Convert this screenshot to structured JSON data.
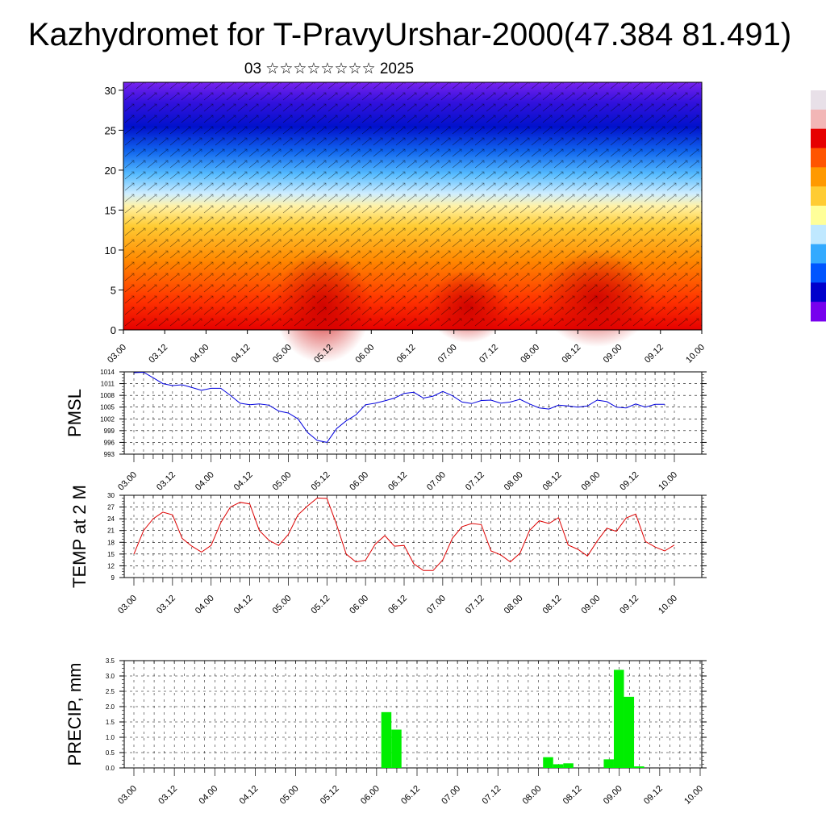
{
  "title": "Kazhydromet for T-PravyUrshar-2000(47.384 81.491)",
  "subtitle": "03 ☆☆☆☆☆☆☆☆ 2025",
  "colors": {
    "pmsl_line": "#0000dd",
    "temp_line": "#dd0000",
    "precip_bar": "#00ee00",
    "grid": "#000000"
  },
  "chart_data": [
    {
      "type": "heatmap",
      "name": "cross-section",
      "x_ticks": [
        "03.00",
        "03.12",
        "04.00",
        "04.12",
        "05.00",
        "05.12",
        "06.00",
        "06.12",
        "07.00",
        "07.12",
        "08.00",
        "08.12",
        "09.00",
        "09.12",
        "10.00"
      ],
      "y_ticks": [
        0,
        5,
        10,
        15,
        20,
        25,
        30
      ],
      "ylim": [
        0,
        31
      ],
      "colorbar_colors": [
        "#e8e0e8",
        "#f2b6b6",
        "#e60000",
        "#ff5500",
        "#ff9900",
        "#ffcc33",
        "#ffff99",
        "#bfe8ff",
        "#33aaff",
        "#0055ff",
        "#0000cc",
        "#7700ee"
      ]
    },
    {
      "type": "line",
      "name": "pmsl",
      "ylabel": "PMSL",
      "x_ticks": [
        "03.00",
        "03.12",
        "04.00",
        "04.12",
        "05.00",
        "05.12",
        "06.00",
        "06.12",
        "07.00",
        "07.12",
        "08.00",
        "08.12",
        "09.00",
        "09.12",
        "10.00"
      ],
      "y_ticks": [
        993,
        996,
        999,
        1002,
        1005,
        1008,
        1011,
        1014
      ],
      "ylim": [
        993,
        1014
      ],
      "values": [
        1013.8,
        1013.9,
        1012.5,
        1011,
        1010.5,
        1010.7,
        1010,
        1009.3,
        1009.8,
        1009.8,
        1008,
        1006,
        1005.6,
        1005.8,
        1005.5,
        1004,
        1003.5,
        1002,
        998.5,
        996.5,
        996,
        999.5,
        1001.5,
        1003,
        1005.6,
        1006,
        1006.6,
        1007.3,
        1008.5,
        1008.8,
        1007.3,
        1007.8,
        1009,
        1007.9,
        1006.3,
        1005.9,
        1006.7,
        1006.8,
        1006,
        1006.3,
        1007,
        1005.8,
        1004.8,
        1004.5,
        1005.5,
        1005.3,
        1005,
        1005.3,
        1006.8,
        1006.4,
        1005,
        1004.8,
        1005.8,
        1005,
        1005.7,
        1005.7
      ]
    },
    {
      "type": "line",
      "name": "temp",
      "ylabel": "TEMP at 2 M",
      "x_ticks": [
        "03.00",
        "03.12",
        "04.00",
        "04.12",
        "05.00",
        "05.12",
        "06.00",
        "06.12",
        "07.00",
        "07.12",
        "08.00",
        "08.12",
        "09.00",
        "09.12",
        "10.00"
      ],
      "y_ticks": [
        9,
        12,
        15,
        18,
        21,
        24,
        27,
        30
      ],
      "ylim": [
        9,
        30
      ],
      "values": [
        15,
        21,
        24,
        25.7,
        25,
        19,
        17,
        15.5,
        17.2,
        23,
        27,
        28.2,
        27.8,
        21,
        18.5,
        17.2,
        20,
        25,
        27.3,
        29.3,
        29.2,
        22.5,
        15,
        13,
        13.4,
        17.5,
        19.7,
        17,
        17.2,
        12.5,
        10.8,
        10.8,
        13.5,
        19,
        22,
        22.8,
        22.5,
        15.8,
        14.8,
        13,
        15.2,
        21,
        23.5,
        22.8,
        24.3,
        17.3,
        16.2,
        14.5,
        18.3,
        21.6,
        20.8,
        24.2,
        25.2,
        18.2,
        16.8,
        15.8,
        17.3
      ]
    },
    {
      "type": "bar",
      "name": "precip",
      "ylabel": "PRECIP, mm",
      "x_ticks": [
        "03.00",
        "03.12",
        "04.00",
        "04.12",
        "05.00",
        "05.12",
        "06.00",
        "06.12",
        "07.00",
        "07.12",
        "08.00",
        "08.12",
        "09.00",
        "09.12",
        "10.00"
      ],
      "y_ticks": [
        "0.0",
        "0.5",
        "1.0",
        "1.5",
        "2.0",
        "2.5",
        "3.0",
        "3.5"
      ],
      "ylim": [
        0,
        3.5
      ],
      "values": [
        0,
        0,
        0,
        0,
        0,
        0,
        0,
        0,
        0,
        0,
        0,
        0,
        0,
        0,
        0,
        0,
        0,
        0,
        0,
        0,
        0,
        0,
        0,
        0,
        0,
        0,
        1.82,
        1.25,
        0,
        0,
        0,
        0,
        0,
        0,
        0,
        0,
        0,
        0,
        0,
        0,
        0,
        0,
        0.35,
        0.12,
        0.15,
        0,
        0,
        0,
        0.28,
        3.2,
        2.32,
        0.05,
        0,
        0,
        0,
        0
      ]
    }
  ]
}
